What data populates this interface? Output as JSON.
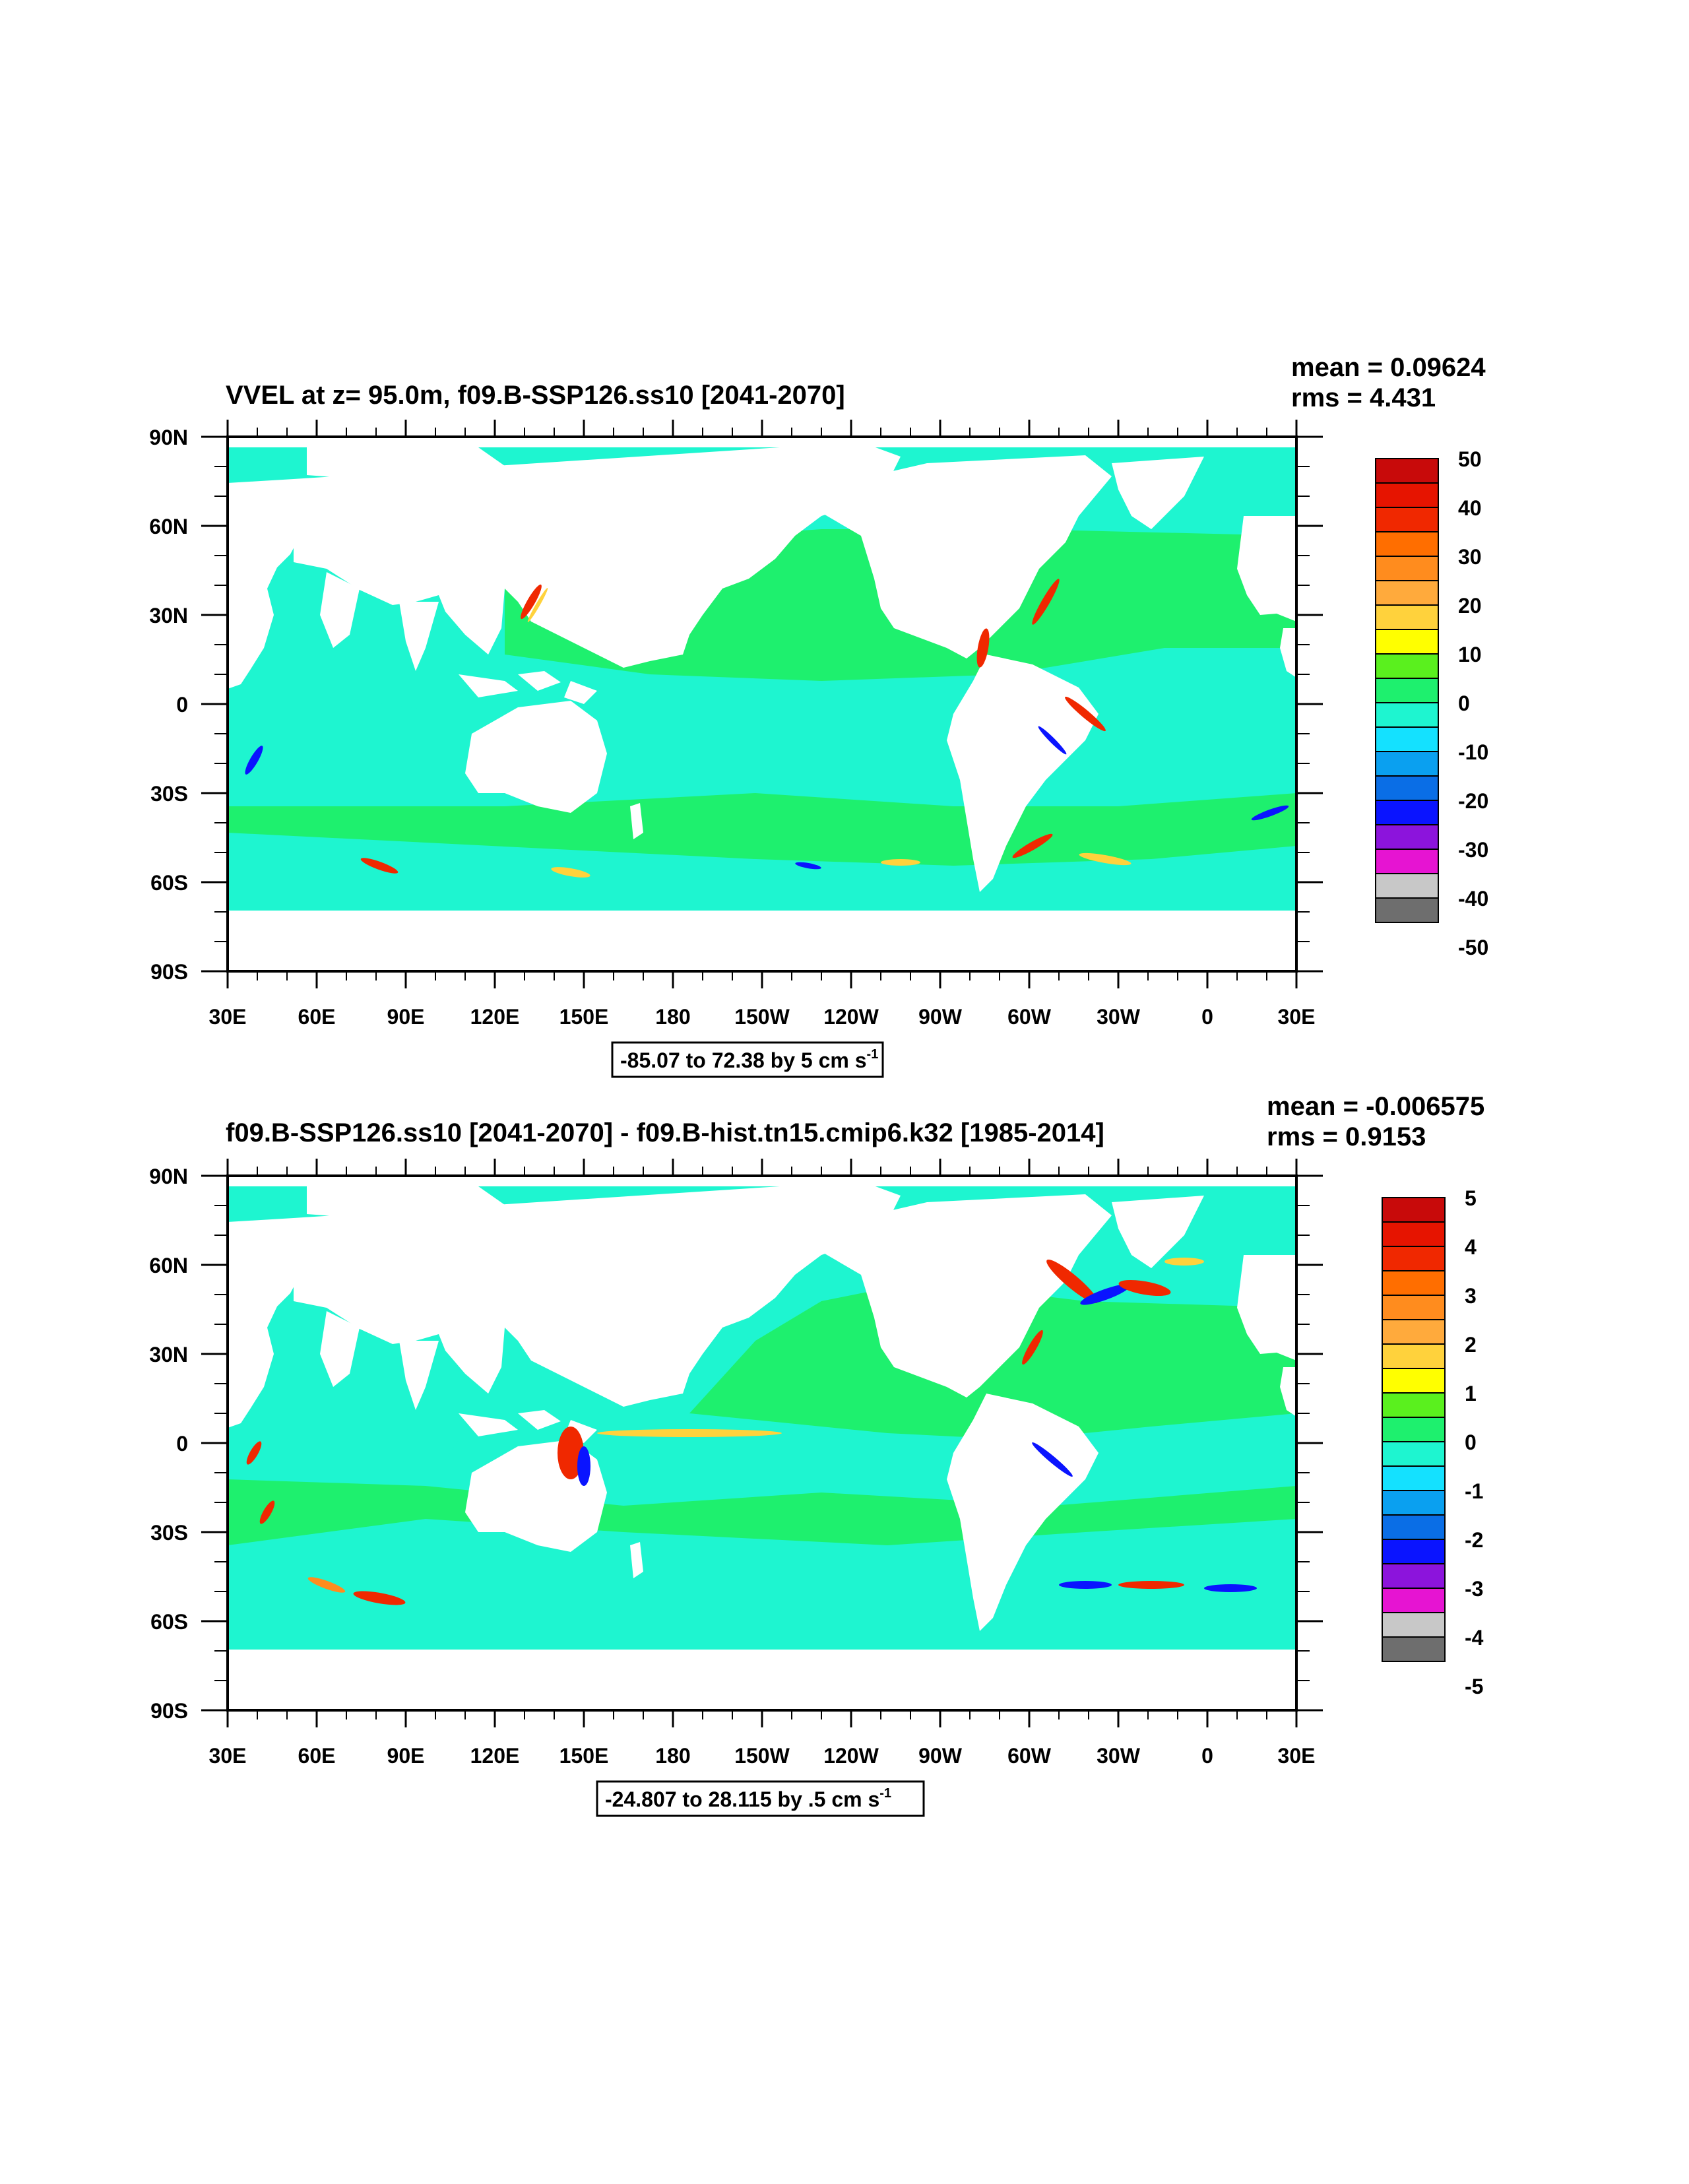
{
  "lat_labels": [
    "90N",
    "60N",
    "30N",
    "0",
    "30S",
    "60S",
    "90S"
  ],
  "lon_labels": [
    "30E",
    "60E",
    "90E",
    "120E",
    "150E",
    "180",
    "150W",
    "120W",
    "90W",
    "60W",
    "30W",
    "0",
    "30E"
  ],
  "colors": {
    "land": "#ffffff",
    "ocean_pos": "#1ef06e",
    "ocean_neg": "#1ef5d0",
    "scale": [
      "#6e6e6e",
      "#c8c8c8",
      "#e614d2",
      "#8c14dc",
      "#0a14ff",
      "#0a6ee6",
      "#0aa0f0",
      "#14e1ff",
      "#1ef5d0",
      "#1ef06e",
      "#5af01e",
      "#ffff00",
      "#ffd23c",
      "#ffaa3c",
      "#ff8c1e",
      "#ff6e00",
      "#f02800",
      "#e61400",
      "#c80a0a"
    ]
  },
  "panels": [
    {
      "title": "VVEL at z=  95.0m, f09.B-SSP126.ss10 [2041-2070]",
      "mean": "mean = 0.09624",
      "rms": "rms = 4.431",
      "colorbar_labels": [
        "50",
        "40",
        "30",
        "20",
        "10",
        "0",
        "-10",
        "-20",
        "-30",
        "-40",
        "-50"
      ],
      "range_text": "-85.07 to 72.38 by 5 cm s",
      "range_exp": "-1"
    },
    {
      "title": "f09.B-SSP126.ss10 [2041-2070] - f09.B-hist.tn15.cmip6.k32 [1985-2014]",
      "mean": "mean = -0.006575",
      "rms": "rms = 0.9153",
      "colorbar_labels": [
        "5",
        "4",
        "3",
        "2",
        "1",
        "0",
        "-1",
        "-2",
        "-3",
        "-4",
        "-5"
      ],
      "range_text": "-24.807 to 28.115 by .5 cm s",
      "range_exp": "-1"
    }
  ]
}
